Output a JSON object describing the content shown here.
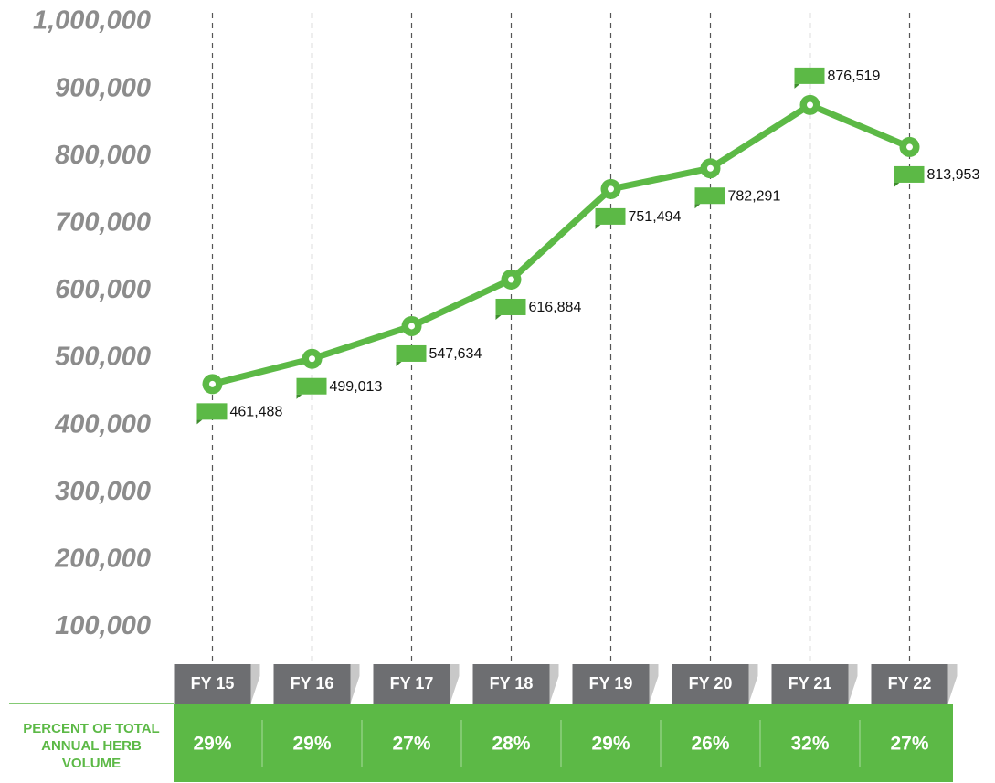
{
  "chart_data": {
    "type": "line",
    "categories": [
      "FY 15",
      "FY 16",
      "FY 17",
      "FY 18",
      "FY 19",
      "FY 20",
      "FY 21",
      "FY 22"
    ],
    "values": [
      461488,
      499013,
      547634,
      616884,
      751494,
      782291,
      876519,
      813953
    ],
    "value_labels": [
      "461,488",
      "499,013",
      "547,634",
      "616,884",
      "751,494",
      "782,291",
      "876,519",
      "813,953"
    ],
    "color": "#5cb946",
    "ylim": [
      0,
      1000000
    ],
    "yticks": [
      {
        "value": 100000,
        "label": "100,000"
      },
      {
        "value": 200000,
        "label": "200,000"
      },
      {
        "value": 300000,
        "label": "300,000"
      },
      {
        "value": 400000,
        "label": "400,000"
      },
      {
        "value": 500000,
        "label": "500,000"
      },
      {
        "value": 600000,
        "label": "600,000"
      },
      {
        "value": 700000,
        "label": "700,000"
      },
      {
        "value": 800000,
        "label": "800,000"
      },
      {
        "value": 900000,
        "label": "900,000"
      },
      {
        "value": 1000000,
        "label": "1,000,000"
      }
    ],
    "percent_row": {
      "label": "PERCENT OF TOTAL ANNUAL HERB VOLUME",
      "values": [
        29,
        29,
        27,
        28,
        29,
        26,
        32,
        27
      ],
      "value_labels": [
        "29%",
        "29%",
        "27%",
        "28%",
        "29%",
        "26%",
        "32%",
        "27%"
      ]
    }
  }
}
